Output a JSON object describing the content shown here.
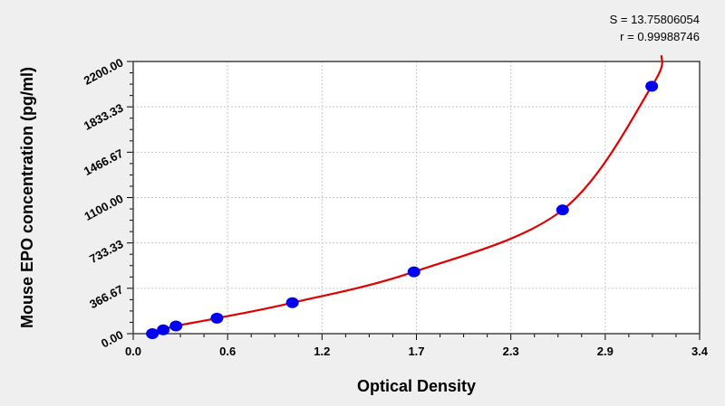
{
  "chart_data": {
    "type": "scatter",
    "xlabel": "Optical Density",
    "ylabel": "Mouse EPO concentration (pg/ml)",
    "xlim": [
      0,
      3.43
    ],
    "ylim": [
      0,
      2200
    ],
    "x_tick_labels": [
      "0.0",
      "0.6",
      "1.2",
      "1.7",
      "2.3",
      "2.9",
      "3.4"
    ],
    "y_tick_labels": [
      "0.00",
      "366.67",
      "733.33",
      "1100.00",
      "1466.67",
      "1833.33",
      "2200.00"
    ],
    "grid": true,
    "points": [
      {
        "x": 0.116,
        "y": 0
      },
      {
        "x": 0.182,
        "y": 31.25
      },
      {
        "x": 0.259,
        "y": 62.5
      },
      {
        "x": 0.507,
        "y": 125
      },
      {
        "x": 0.964,
        "y": 250
      },
      {
        "x": 1.7,
        "y": 500
      },
      {
        "x": 2.6,
        "y": 1000
      },
      {
        "x": 3.14,
        "y": 2000
      }
    ],
    "fit_curve_end": {
      "x": 3.2,
      "y": 2250
    },
    "point_color": "#0000ee",
    "curve_color": "#e00000",
    "annotations": [
      "S = 13.75806054",
      "r = 0.99988746"
    ]
  }
}
